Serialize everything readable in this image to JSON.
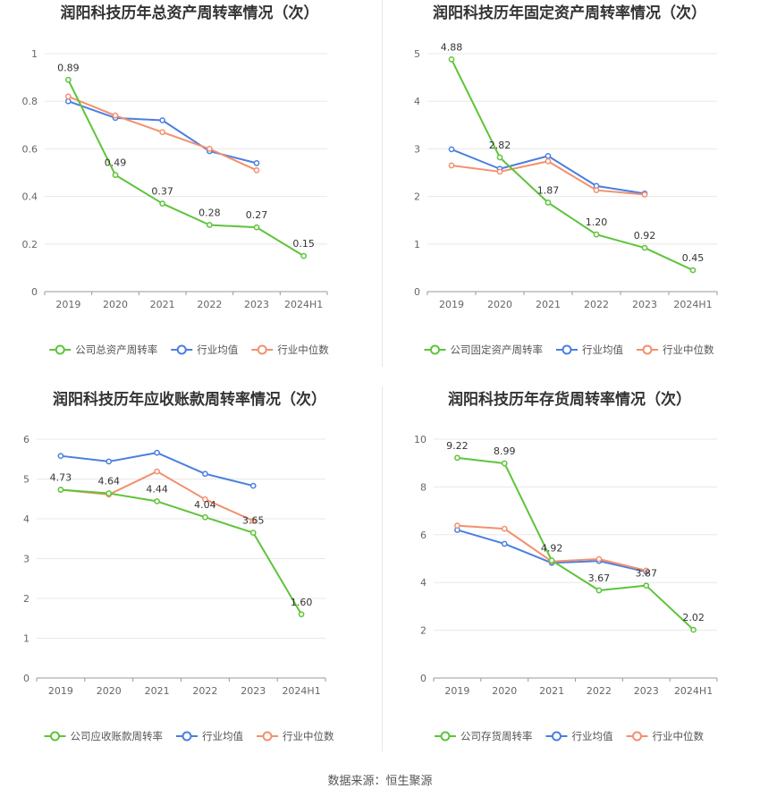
{
  "colors": {
    "company": "#5ec43a",
    "avg": "#4a7fe0",
    "median": "#f2906e",
    "grid": "#e8e8e8",
    "axis": "#999999"
  },
  "legend": {
    "avg": "行业均值",
    "median": "行业中位数"
  },
  "source": "数据来源：恒生聚源",
  "chart_data": [
    {
      "type": "line",
      "title": "润阳科技历年总资产周转率情况（次）",
      "categories": [
        "2019",
        "2020",
        "2021",
        "2022",
        "2023",
        "2024H1"
      ],
      "ylim": [
        0,
        1
      ],
      "yticks": [
        0,
        0.2,
        0.4,
        0.6,
        0.8,
        1
      ],
      "ytick_labels": [
        "0",
        "0.2",
        "0.4",
        "0.6",
        "0.8",
        "1"
      ],
      "series": [
        {
          "name": "公司总资产周转率",
          "role": "company",
          "values": [
            0.89,
            0.49,
            0.37,
            0.28,
            0.27,
            0.15
          ],
          "labels": [
            "0.89",
            "0.49",
            "0.37",
            "0.28",
            "0.27",
            "0.15"
          ]
        },
        {
          "name": "行业均值",
          "role": "avg",
          "values": [
            0.8,
            0.73,
            0.72,
            0.59,
            0.54,
            null
          ]
        },
        {
          "name": "行业中位数",
          "role": "median",
          "values": [
            0.82,
            0.74,
            0.67,
            0.6,
            0.51,
            null
          ]
        }
      ]
    },
    {
      "type": "line",
      "title": "润阳科技历年固定资产周转率情况（次）",
      "categories": [
        "2019",
        "2020",
        "2021",
        "2022",
        "2023",
        "2024H1"
      ],
      "ylim": [
        0,
        5
      ],
      "yticks": [
        0,
        1,
        2,
        3,
        4,
        5
      ],
      "ytick_labels": [
        "0",
        "1",
        "2",
        "3",
        "4",
        "5"
      ],
      "series": [
        {
          "name": "公司固定资产周转率",
          "role": "company",
          "values": [
            4.88,
            2.82,
            1.87,
            1.2,
            0.92,
            0.45
          ],
          "labels": [
            "4.88",
            "2.82",
            "1.87",
            "1.20",
            "0.92",
            "0.45"
          ]
        },
        {
          "name": "行业均值",
          "role": "avg",
          "values": [
            2.99,
            2.58,
            2.85,
            2.22,
            2.06,
            null
          ]
        },
        {
          "name": "行业中位数",
          "role": "median",
          "values": [
            2.65,
            2.52,
            2.74,
            2.13,
            2.04,
            null
          ]
        }
      ]
    },
    {
      "type": "line",
      "title": "润阳科技历年应收账款周转率情况（次）",
      "categories": [
        "2019",
        "2020",
        "2021",
        "2022",
        "2023",
        "2024H1"
      ],
      "ylim": [
        0,
        6
      ],
      "yticks": [
        0,
        1,
        2,
        3,
        4,
        5,
        6
      ],
      "ytick_labels": [
        "0",
        "1",
        "2",
        "3",
        "4",
        "5",
        "6"
      ],
      "series": [
        {
          "name": "公司应收账款周转率",
          "role": "company",
          "values": [
            4.73,
            4.64,
            4.44,
            4.04,
            3.65,
            1.6
          ],
          "labels": [
            "4.73",
            "4.64",
            "4.44",
            "4.04",
            "3.65",
            "1.60"
          ]
        },
        {
          "name": "行业均值",
          "role": "avg",
          "values": [
            5.58,
            5.44,
            5.66,
            5.13,
            4.83,
            null
          ]
        },
        {
          "name": "行业中位数",
          "role": "median",
          "values": [
            4.73,
            4.61,
            5.19,
            4.49,
            3.95,
            null
          ]
        }
      ]
    },
    {
      "type": "line",
      "title": "润阳科技历年存货周转率情况（次）",
      "categories": [
        "2019",
        "2020",
        "2021",
        "2022",
        "2023",
        "2024H1"
      ],
      "ylim": [
        0,
        10
      ],
      "yticks": [
        0,
        2,
        4,
        6,
        8,
        10
      ],
      "ytick_labels": [
        "0",
        "2",
        "4",
        "6",
        "8",
        "10"
      ],
      "series": [
        {
          "name": "公司存货周转率",
          "role": "company",
          "values": [
            9.22,
            8.99,
            4.92,
            3.67,
            3.87,
            2.02
          ],
          "labels": [
            "9.22",
            "8.99",
            "4.92",
            "3.67",
            "3.87",
            "2.02"
          ]
        },
        {
          "name": "行业均值",
          "role": "avg",
          "values": [
            6.2,
            5.62,
            4.82,
            4.9,
            4.45,
            null
          ]
        },
        {
          "name": "行业中位数",
          "role": "median",
          "values": [
            6.38,
            6.25,
            4.88,
            4.98,
            4.5,
            null
          ]
        }
      ]
    }
  ]
}
